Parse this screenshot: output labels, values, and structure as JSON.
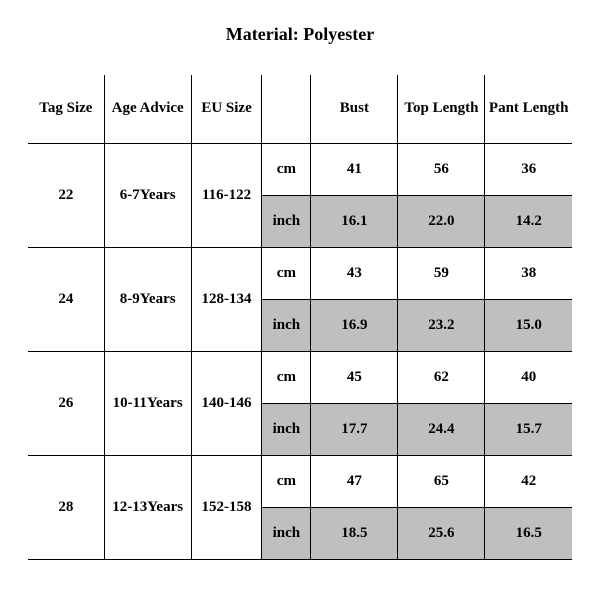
{
  "title": "Material: Polyester",
  "columns": {
    "tag_size": "Tag Size",
    "age_advice": "Age Advice",
    "eu_size": "EU Size",
    "unit": "",
    "bust": "Bust",
    "top_length": "Top Length",
    "pant_length": "Pant Length"
  },
  "unit_labels": {
    "cm": "cm",
    "inch": "inch"
  },
  "colors": {
    "background": "#ffffff",
    "border": "#000000",
    "shaded_row": "#bfbfbf",
    "text": "#000000"
  },
  "typography": {
    "font_family": "Times New Roman",
    "title_fontsize_pt": 14,
    "cell_fontsize_pt": 11,
    "all_bold": true
  },
  "rows": [
    {
      "tag_size": "22",
      "age_advice": "6-7Years",
      "eu_size": "116-122",
      "cm": {
        "bust": "41",
        "top_length": "56",
        "pant_length": "36"
      },
      "inch": {
        "bust": "16.1",
        "top_length": "22.0",
        "pant_length": "14.2"
      }
    },
    {
      "tag_size": "24",
      "age_advice": "8-9Years",
      "eu_size": "128-134",
      "cm": {
        "bust": "43",
        "top_length": "59",
        "pant_length": "38"
      },
      "inch": {
        "bust": "16.9",
        "top_length": "23.2",
        "pant_length": "15.0"
      }
    },
    {
      "tag_size": "26",
      "age_advice": "10-11Years",
      "eu_size": "140-146",
      "cm": {
        "bust": "45",
        "top_length": "62",
        "pant_length": "40"
      },
      "inch": {
        "bust": "17.7",
        "top_length": "24.4",
        "pant_length": "15.7"
      }
    },
    {
      "tag_size": "28",
      "age_advice": "12-13Years",
      "eu_size": "152-158",
      "cm": {
        "bust": "47",
        "top_length": "65",
        "pant_length": "42"
      },
      "inch": {
        "bust": "18.5",
        "top_length": "25.6",
        "pant_length": "16.5"
      }
    }
  ]
}
